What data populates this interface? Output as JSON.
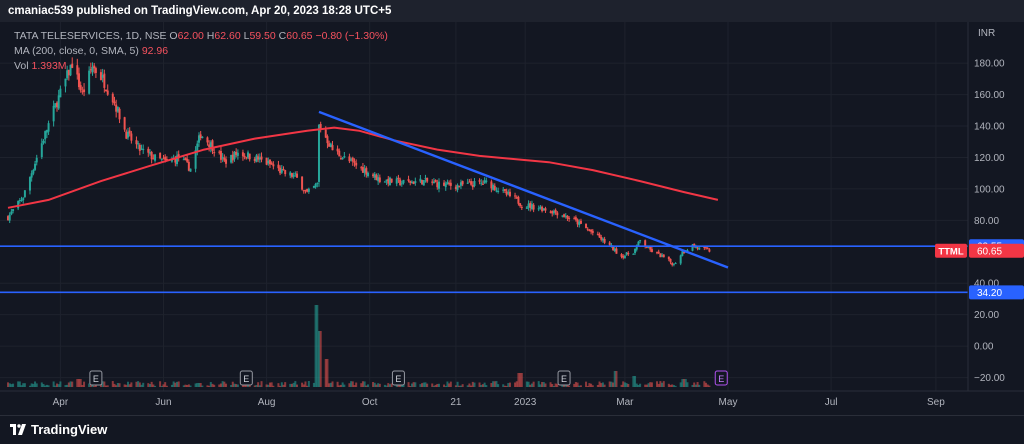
{
  "header": {
    "published": "cmaniac539 published on TradingView.com, Apr 20, 2023 18:28 UTC+5"
  },
  "legend": {
    "symbol_line": "TATA TELESERVICES, 1D, NSE",
    "open_label": "O",
    "open": "62.00",
    "high_label": "H",
    "high": "62.60",
    "low_label": "L",
    "low": "59.50",
    "close_label": "C",
    "close": "60.65",
    "change": "−0.80 (−1.30%)",
    "ma_line": "MA (200, close, 0, SMA, 5)",
    "ma_value": "92.96",
    "vol_label": "Vol",
    "vol_value": "1.393M"
  },
  "footer": {
    "brand": "TradingView"
  },
  "colors": {
    "background": "#131722",
    "up_candle": "#26a69a",
    "down_candle": "#ef5350",
    "ma_line": "#f23645",
    "trendline": "#2962ff",
    "hline": "#2962ff",
    "grid": "#1e222d",
    "axis_text": "#b2b5be"
  },
  "chart_data": {
    "type": "candlestick",
    "symbol": "TATA TELESERVICES",
    "exchange": "NSE",
    "interval": "1D",
    "currency": "INR",
    "y_axis": {
      "unit_label": "INR",
      "ticks": [
        "180.00",
        "160.00",
        "140.00",
        "120.00",
        "100.00",
        "80.00",
        "40.00",
        "20.00",
        "0.00",
        "−20.00"
      ],
      "ylim": [
        -26,
        196
      ]
    },
    "x_axis": {
      "ticks": [
        {
          "label": "Apr",
          "date": "2022-04-01"
        },
        {
          "label": "Jun",
          "date": "2022-06-01"
        },
        {
          "label": "Aug",
          "date": "2022-08-01"
        },
        {
          "label": "Oct",
          "date": "2022-10-01"
        },
        {
          "label": "21",
          "date": "2022-11-21"
        },
        {
          "label": "2023",
          "date": "2023-01-01"
        },
        {
          "label": "Mar",
          "date": "2023-03-01"
        },
        {
          "label": "May",
          "date": "2023-05-01"
        },
        {
          "label": "Jul",
          "date": "2023-07-01"
        },
        {
          "label": "Sep",
          "date": "2023-09-01"
        }
      ],
      "xlim": [
        "2022-03-01",
        "2023-09-20"
      ]
    },
    "price_path": [
      [
        "2022-03-01",
        82
      ],
      [
        "2022-03-10",
        95
      ],
      [
        "2022-03-18",
        120
      ],
      [
        "2022-03-28",
        150
      ],
      [
        "2022-04-08",
        180
      ],
      [
        "2022-04-14",
        160
      ],
      [
        "2022-04-20",
        178
      ],
      [
        "2022-04-26",
        170
      ],
      [
        "2022-05-03",
        155
      ],
      [
        "2022-05-10",
        135
      ],
      [
        "2022-05-18",
        125
      ],
      [
        "2022-05-26",
        120
      ],
      [
        "2022-06-03",
        117
      ],
      [
        "2022-06-10",
        120
      ],
      [
        "2022-06-17",
        113
      ],
      [
        "2022-06-23",
        135
      ],
      [
        "2022-06-30",
        127
      ],
      [
        "2022-07-07",
        117
      ],
      [
        "2022-07-15",
        123
      ],
      [
        "2022-07-25",
        120
      ],
      [
        "2022-08-04",
        115
      ],
      [
        "2022-08-11",
        110
      ],
      [
        "2022-08-18",
        108
      ],
      [
        "2022-08-25",
        97
      ],
      [
        "2022-08-31",
        103
      ],
      [
        "2022-09-01",
        140
      ],
      [
        "2022-09-03",
        137
      ],
      [
        "2022-09-09",
        125
      ],
      [
        "2022-09-18",
        118
      ],
      [
        "2022-09-28",
        112
      ],
      [
        "2022-10-07",
        106
      ],
      [
        "2022-10-20",
        104
      ],
      [
        "2022-11-01",
        105
      ],
      [
        "2022-11-11",
        103
      ],
      [
        "2022-11-21",
        102
      ],
      [
        "2022-12-01",
        103
      ],
      [
        "2022-12-10",
        104
      ],
      [
        "2022-12-20",
        97
      ],
      [
        "2022-12-27",
        93
      ],
      [
        "2022-12-30",
        90
      ],
      [
        "2023-01-10",
        88
      ],
      [
        "2023-01-20",
        85
      ],
      [
        "2023-01-30",
        80
      ],
      [
        "2023-02-10",
        72
      ],
      [
        "2023-02-20",
        64
      ],
      [
        "2023-02-27",
        57
      ],
      [
        "2023-03-06",
        60
      ],
      [
        "2023-03-10",
        67
      ],
      [
        "2023-03-16",
        61
      ],
      [
        "2023-03-23",
        57
      ],
      [
        "2023-03-30",
        52
      ],
      [
        "2023-04-04",
        60
      ],
      [
        "2023-04-10",
        64
      ],
      [
        "2023-04-14",
        62
      ],
      [
        "2023-04-20",
        60.65
      ]
    ],
    "moving_average": {
      "name": "MA (200, close, 0, SMA, 5)",
      "current": 92.96,
      "points": [
        [
          "2022-03-01",
          88
        ],
        [
          "2022-03-25",
          93
        ],
        [
          "2022-04-25",
          105
        ],
        [
          "2022-05-25",
          115
        ],
        [
          "2022-06-25",
          125
        ],
        [
          "2022-07-25",
          132
        ],
        [
          "2022-08-25",
          137
        ],
        [
          "2022-09-10",
          139
        ],
        [
          "2022-09-25",
          137
        ],
        [
          "2022-10-15",
          131
        ],
        [
          "2022-11-10",
          125
        ],
        [
          "2022-12-05",
          121
        ],
        [
          "2022-12-25",
          119
        ],
        [
          "2023-01-15",
          117
        ],
        [
          "2023-02-10",
          112
        ],
        [
          "2023-03-10",
          105
        ],
        [
          "2023-04-05",
          98
        ],
        [
          "2023-04-25",
          93
        ]
      ]
    },
    "trendline": {
      "start": [
        "2022-09-01",
        149
      ],
      "end": [
        "2023-05-01",
        50
      ]
    },
    "horizontal_lines": [
      63.55,
      34.2
    ],
    "price_labels": [
      {
        "value": "63.55",
        "y": 63.55,
        "color": "#2962ff"
      },
      {
        "value": "60.65",
        "y": 60.65,
        "color": "#f23645",
        "tag": "TTML"
      },
      {
        "value": "34.20",
        "y": 34.2,
        "color": "#2962ff"
      }
    ],
    "volume": {
      "label": "Vol",
      "last": "1.393M",
      "spikes": [
        [
          "2022-04-12",
          8
        ],
        [
          "2022-06-22",
          4
        ],
        [
          "2022-08-27",
          6
        ],
        [
          "2022-08-31",
          82
        ],
        [
          "2022-09-02",
          56
        ],
        [
          "2022-09-05",
          28
        ],
        [
          "2022-12-29",
          14
        ],
        [
          "2023-02-24",
          16
        ],
        [
          "2023-03-06",
          11
        ],
        [
          "2023-04-05",
          8
        ]
      ]
    },
    "earnings": [
      {
        "label": "E",
        "date": "2022-04-22"
      },
      {
        "label": "E",
        "date": "2022-07-20"
      },
      {
        "label": "E",
        "date": "2022-10-18"
      },
      {
        "label": "E",
        "date": "2023-01-24"
      },
      {
        "label": "E",
        "date": "2023-04-27",
        "upcoming": true
      }
    ]
  }
}
